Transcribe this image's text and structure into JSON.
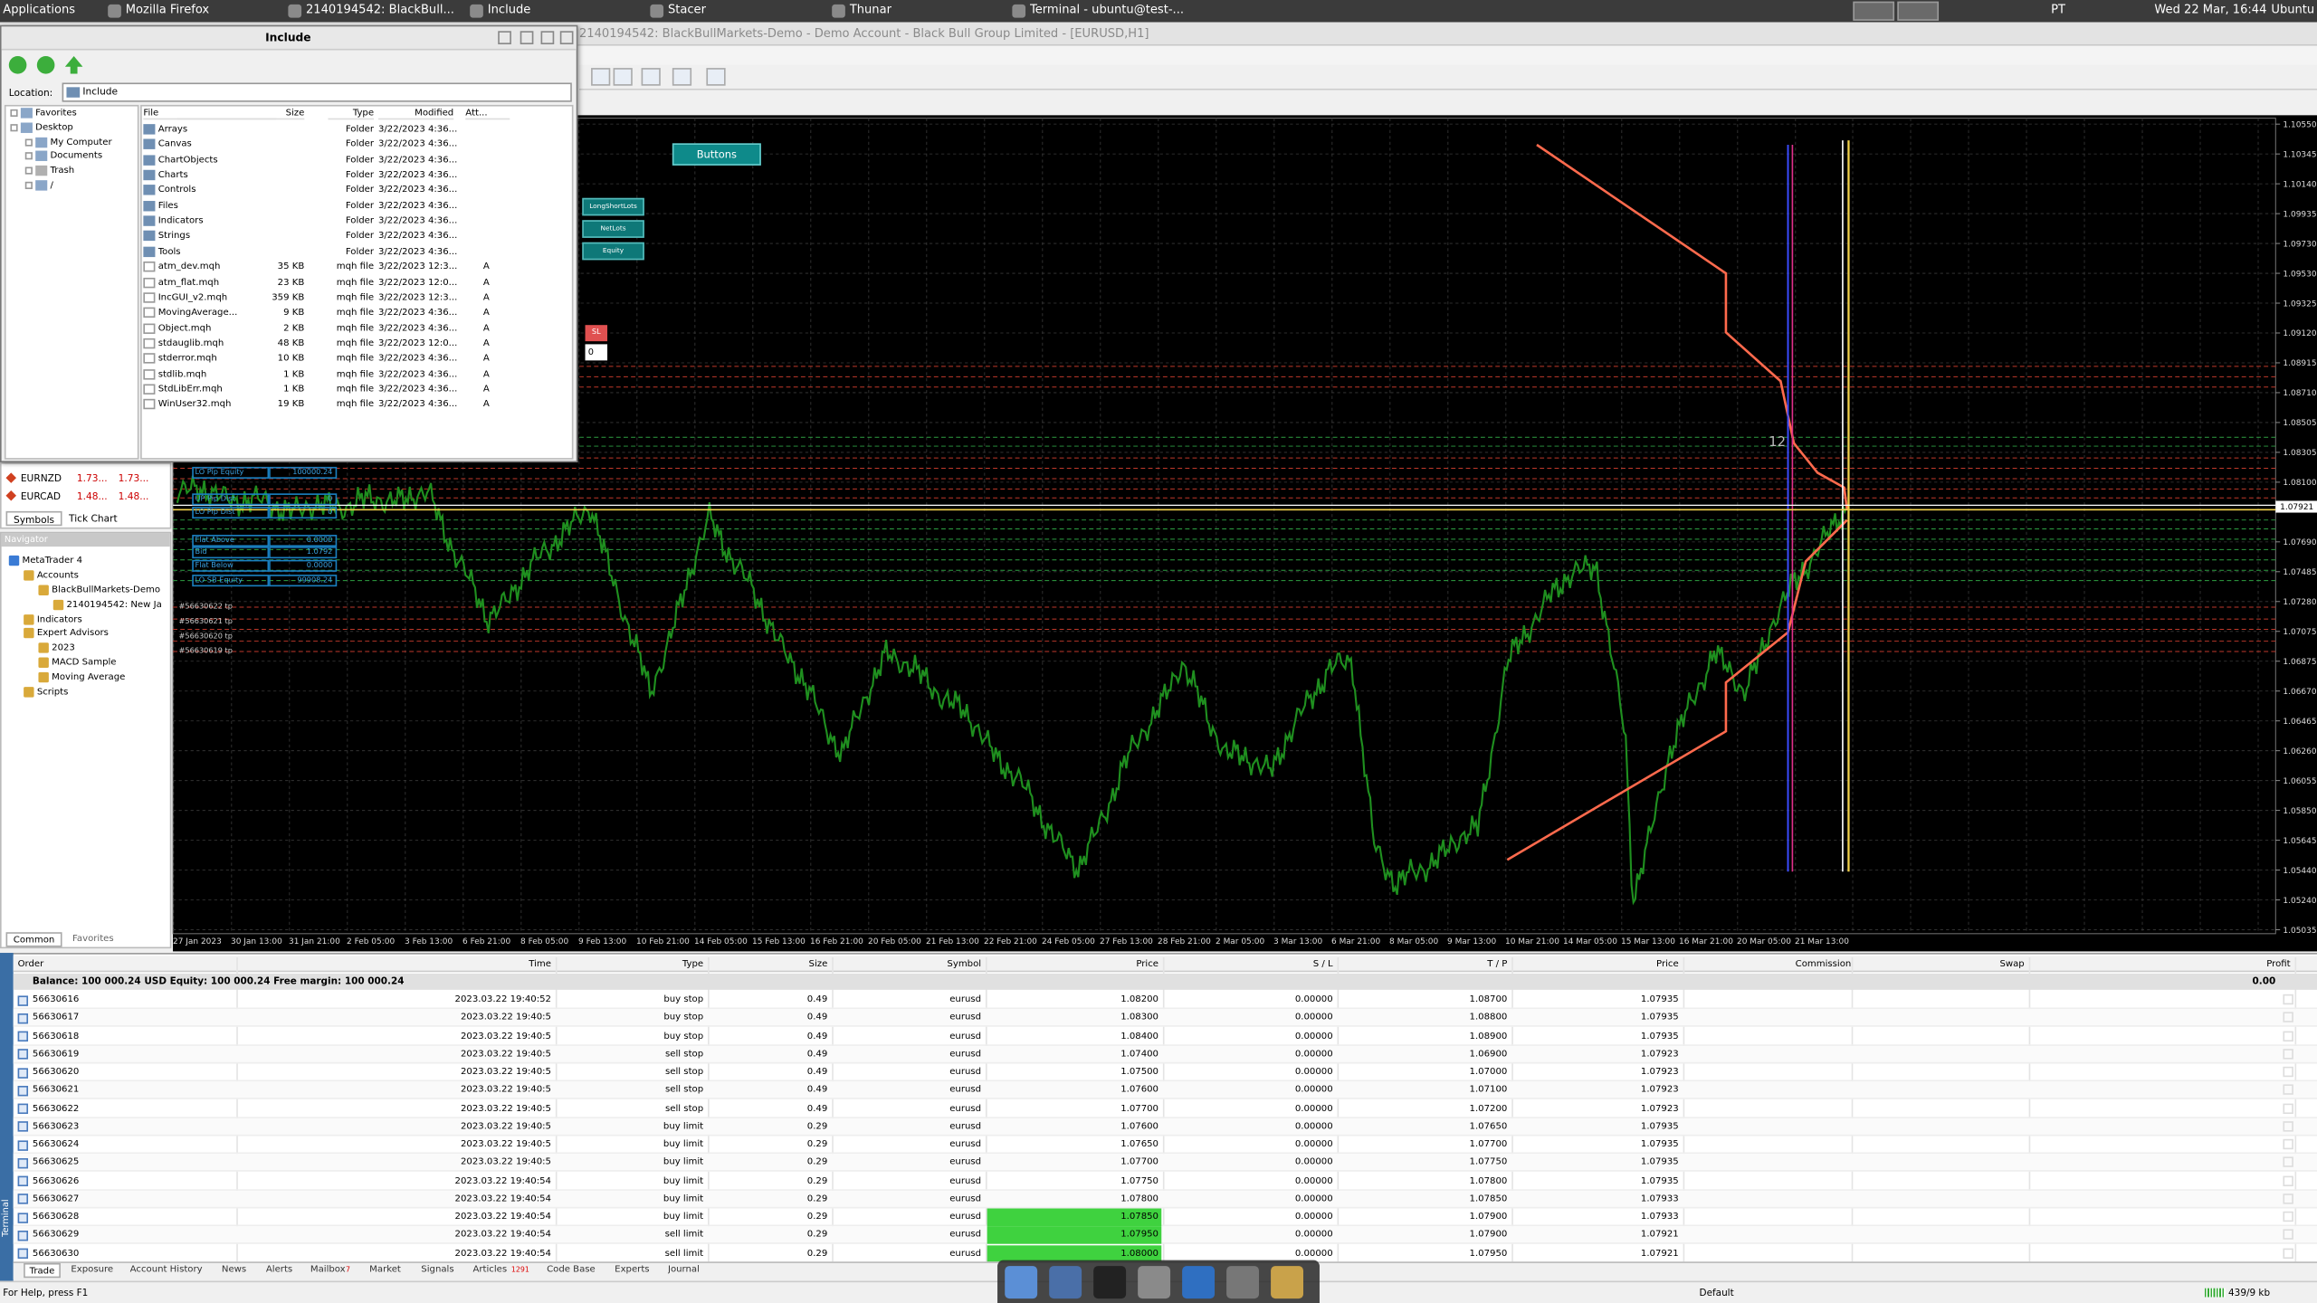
{
  "taskbar": {
    "apps": [
      "Applications",
      "Mozilla Firefox",
      "2140194542: BlackBull...",
      "Include",
      "Stacer",
      "Thunar",
      "Terminal - ubuntu@test-..."
    ],
    "keyboard": "PT",
    "clock": "Wed 22 Mar, 16:44",
    "user": "Ubuntu"
  },
  "window": {
    "title": "2140194542: BlackBullMarkets-Demo - Demo Account - Black Bull Group Limited - [EURUSD,H1]"
  },
  "file_dialog": {
    "title": "Include",
    "location_label": "Location:",
    "location": "Include",
    "tree": [
      "Favorites",
      "Desktop",
      "My Computer",
      "Documents",
      "Trash",
      "/"
    ],
    "columns": [
      "File",
      "Size",
      "Type",
      "Modified",
      "Att..."
    ],
    "files": [
      [
        "Arrays",
        "",
        "Folder",
        "3/22/2023 4:36...",
        ""
      ],
      [
        "Canvas",
        "",
        "Folder",
        "3/22/2023 4:36...",
        ""
      ],
      [
        "ChartObjects",
        "",
        "Folder",
        "3/22/2023 4:36...",
        ""
      ],
      [
        "Charts",
        "",
        "Folder",
        "3/22/2023 4:36...",
        ""
      ],
      [
        "Controls",
        "",
        "Folder",
        "3/22/2023 4:36...",
        ""
      ],
      [
        "Files",
        "",
        "Folder",
        "3/22/2023 4:36...",
        ""
      ],
      [
        "Indicators",
        "",
        "Folder",
        "3/22/2023 4:36...",
        ""
      ],
      [
        "Strings",
        "",
        "Folder",
        "3/22/2023 4:36...",
        ""
      ],
      [
        "Tools",
        "",
        "Folder",
        "3/22/2023 4:36...",
        ""
      ],
      [
        "atm_dev.mqh",
        "35 KB",
        "mqh file",
        "3/22/2023 12:3...",
        "A"
      ],
      [
        "atm_flat.mqh",
        "23 KB",
        "mqh file",
        "3/22/2023 12:0...",
        "A"
      ],
      [
        "IncGUI_v2.mqh",
        "359 KB",
        "mqh file",
        "3/22/2023 12:3...",
        "A"
      ],
      [
        "MovingAverage...",
        "9 KB",
        "mqh file",
        "3/22/2023 4:36...",
        "A"
      ],
      [
        "Object.mqh",
        "2 KB",
        "mqh file",
        "3/22/2023 4:36...",
        "A"
      ],
      [
        "stdauglib.mqh",
        "48 KB",
        "mqh file",
        "3/22/2023 12:0...",
        "A"
      ],
      [
        "stderror.mqh",
        "10 KB",
        "mqh file",
        "3/22/2023 4:36...",
        "A"
      ],
      [
        "stdlib.mqh",
        "1 KB",
        "mqh file",
        "3/22/2023 4:36...",
        "A"
      ],
      [
        "StdLibErr.mqh",
        "1 KB",
        "mqh file",
        "3/22/2023 4:36...",
        "A"
      ],
      [
        "WinUser32.mqh",
        "19 KB",
        "mqh file",
        "3/22/2023 4:36...",
        "A"
      ]
    ]
  },
  "market_watch": {
    "rows": [
      [
        "EURNZD",
        "1.73...",
        "1.73..."
      ],
      [
        "EURCAD",
        "1.48...",
        "1.48..."
      ]
    ],
    "tabs": [
      "Symbols",
      "Tick Chart"
    ]
  },
  "navigator": {
    "title": "Navigator",
    "items": [
      "MetaTrader 4",
      "Accounts",
      "BlackBullMarkets-Demo",
      "2140194542: New Ja",
      "Indicators",
      "Expert Advisors",
      "2023",
      "MACD Sample",
      "Moving Average",
      "Scripts"
    ],
    "tabs": [
      "Common",
      "Favorites"
    ]
  },
  "chart": {
    "buttons": [
      "Buttons",
      "LongShortLots",
      "NetLots",
      "Equity"
    ],
    "panel": [
      [
        "LO Pip Equity",
        "100000.24"
      ],
      [
        "UP Pip Dist",
        "0"
      ],
      [
        "LO Pip Dist",
        "0"
      ],
      [
        "Flat Above",
        "0.0000"
      ],
      [
        "Bid",
        "1.0792"
      ],
      [
        "Flat Below",
        "0.0000"
      ],
      [
        "LO SB Equity",
        "99908.24"
      ]
    ],
    "order_labels": [
      "#56630622 tp",
      "#56630621 tp",
      "#56630620 tp",
      "#56630619 tp"
    ],
    "sl_label": "SL",
    "zero_label": "0",
    "count_label": "12",
    "price_axis": [
      "1.10550",
      "1.10345",
      "1.10140",
      "1.09935",
      "1.09730",
      "1.09530",
      "1.09325",
      "1.09120",
      "1.08915",
      "1.08710",
      "1.08505",
      "1.08305",
      "1.08100",
      "1.07690",
      "1.07485",
      "1.07280",
      "1.07075",
      "1.06875",
      "1.06670",
      "1.06465",
      "1.06260",
      "1.06055",
      "1.05850",
      "1.05645",
      "1.05440",
      "1.05240",
      "1.05035"
    ],
    "current_price": "1.07921",
    "time_axis": [
      "27 Jan 2023",
      "30 Jan 13:00",
      "31 Jan 21:00",
      "2 Feb 05:00",
      "3 Feb 13:00",
      "6 Feb 21:00",
      "8 Feb 05:00",
      "9 Feb 13:00",
      "10 Feb 21:00",
      "14 Feb 05:00",
      "15 Feb 13:00",
      "16 Feb 21:00",
      "20 Feb 05:00",
      "21 Feb 13:00",
      "22 Feb 21:00",
      "24 Feb 05:00",
      "27 Feb 13:00",
      "28 Feb 21:00",
      "2 Mar 05:00",
      "3 Mar 13:00",
      "6 Mar 21:00",
      "8 Mar 05:00",
      "9 Mar 13:00",
      "10 Mar 21:00",
      "14 Mar 05:00",
      "15 Mar 13:00",
      "16 Mar 21:00",
      "20 Mar 05:00",
      "21 Mar 13:00"
    ]
  },
  "terminal": {
    "label": "Terminal",
    "columns": [
      "Order",
      "Time",
      "Type",
      "Size",
      "Symbol",
      "Price",
      "S / L",
      "T / P",
      "Price",
      "Commission",
      "Swap",
      "Profit"
    ],
    "balance": "Balance: 100 000.24 USD  Equity: 100 000.24  Free margin: 100 000.24",
    "balance_profit": "0.00",
    "rows": [
      [
        "56630616",
        "2023.03.22 19:40:52",
        "buy stop",
        "0.49",
        "eurusd",
        "1.08200",
        "0.00000",
        "1.08700",
        "1.07935"
      ],
      [
        "56630617",
        "2023.03.22 19:40:5",
        "buy stop",
        "0.49",
        "eurusd",
        "1.08300",
        "0.00000",
        "1.08800",
        "1.07935"
      ],
      [
        "56630618",
        "2023.03.22 19:40:5",
        "buy stop",
        "0.49",
        "eurusd",
        "1.08400",
        "0.00000",
        "1.08900",
        "1.07935"
      ],
      [
        "56630619",
        "2023.03.22 19:40:5",
        "sell stop",
        "0.49",
        "eurusd",
        "1.07400",
        "0.00000",
        "1.06900",
        "1.07923"
      ],
      [
        "56630620",
        "2023.03.22 19:40:5",
        "sell stop",
        "0.49",
        "eurusd",
        "1.07500",
        "0.00000",
        "1.07000",
        "1.07923"
      ],
      [
        "56630621",
        "2023.03.22 19:40:5",
        "sell stop",
        "0.49",
        "eurusd",
        "1.07600",
        "0.00000",
        "1.07100",
        "1.07923"
      ],
      [
        "56630622",
        "2023.03.22 19:40:5",
        "sell stop",
        "0.49",
        "eurusd",
        "1.07700",
        "0.00000",
        "1.07200",
        "1.07923"
      ],
      [
        "56630623",
        "2023.03.22 19:40:5",
        "buy limit",
        "0.29",
        "eurusd",
        "1.07600",
        "0.00000",
        "1.07650",
        "1.07935"
      ],
      [
        "56630624",
        "2023.03.22 19:40:5",
        "buy limit",
        "0.29",
        "eurusd",
        "1.07650",
        "0.00000",
        "1.07700",
        "1.07935"
      ],
      [
        "56630625",
        "2023.03.22 19:40:5",
        "buy limit",
        "0.29",
        "eurusd",
        "1.07700",
        "0.00000",
        "1.07750",
        "1.07935"
      ],
      [
        "56630626",
        "2023.03.22 19:40:54",
        "buy limit",
        "0.29",
        "eurusd",
        "1.07750",
        "0.00000",
        "1.07800",
        "1.07935"
      ],
      [
        "56630627",
        "2023.03.22 19:40:54",
        "buy limit",
        "0.29",
        "eurusd",
        "1.07800",
        "0.00000",
        "1.07850",
        "1.07933"
      ],
      [
        "56630628",
        "2023.03.22 19:40:54",
        "buy limit",
        "0.29",
        "eurusd",
        "1.07850",
        "0.00000",
        "1.07900",
        "1.07933"
      ],
      [
        "56630629",
        "2023.03.22 19:40:54",
        "sell limit",
        "0.29",
        "eurusd",
        "1.07950",
        "0.00000",
        "1.07900",
        "1.07921"
      ],
      [
        "56630630",
        "2023.03.22 19:40:54",
        "sell limit",
        "0.29",
        "eurusd",
        "1.08000",
        "0.00000",
        "1.07950",
        "1.07921"
      ]
    ],
    "tabs": [
      "Trade",
      "Exposure",
      "Account History",
      "News",
      "Alerts",
      "Mailbox",
      "Market",
      "Signals",
      "Articles",
      "Code Base",
      "Experts",
      "Journal"
    ],
    "badges": {
      "5": "7",
      "8": "1291"
    }
  },
  "status": {
    "help": "For Help, press F1",
    "profile": "Default",
    "traffic": "439/9 kb"
  }
}
